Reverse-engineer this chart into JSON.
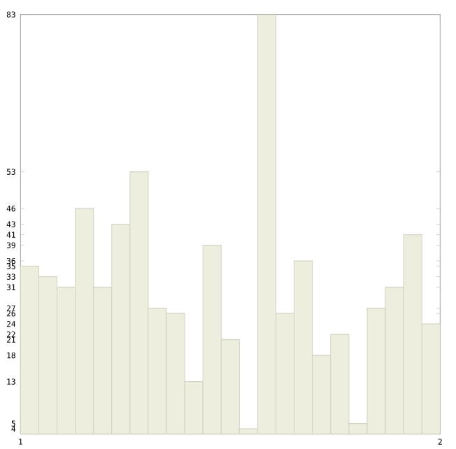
{
  "chart_data": {
    "type": "histogram",
    "bins": [
      1,
      1.0435,
      1.087,
      1.1304,
      1.1739,
      1.2174,
      1.2609,
      1.3043,
      1.3478,
      1.3913,
      1.4348,
      1.4783,
      1.5217,
      1.5652,
      1.6087,
      1.6522,
      1.6957,
      1.7391,
      1.7826,
      1.8261,
      1.8696,
      1.913,
      1.9565,
      2
    ],
    "values": [
      35,
      33,
      31,
      46,
      31,
      43,
      53,
      27,
      26,
      13,
      39,
      21,
      4,
      83,
      26,
      36,
      18,
      22,
      5,
      27,
      31,
      41,
      24
    ],
    "color": "#eeeedf",
    "xlim": [
      1,
      2
    ],
    "xticks": [
      1,
      2
    ],
    "ylim": [
      3,
      83
    ],
    "yticks": [
      4,
      5,
      13,
      18,
      21,
      22,
      24,
      26,
      27,
      31,
      33,
      35,
      36,
      39,
      41,
      43,
      46,
      53,
      83
    ],
    "grid": false
  }
}
